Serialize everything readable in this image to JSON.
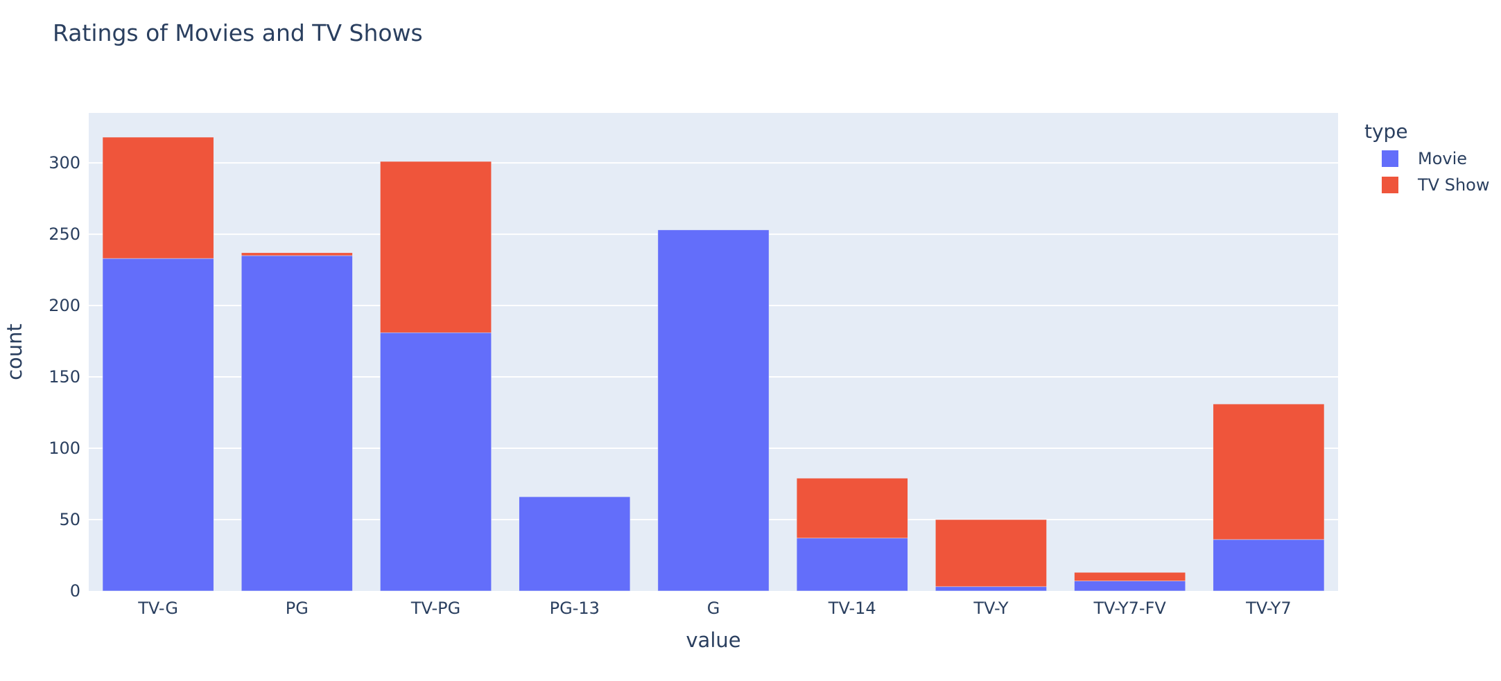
{
  "chart_data": {
    "type": "bar",
    "barmode": "stack",
    "title": "Ratings of Movies and TV Shows",
    "xlabel": "value",
    "ylabel": "count",
    "categories": [
      "TV-G",
      "PG",
      "TV-PG",
      "PG-13",
      "G",
      "TV-14",
      "TV-Y",
      "TV-Y7-FV",
      "TV-Y7"
    ],
    "ylim": [
      0,
      335
    ],
    "yticks": [
      0,
      50,
      100,
      150,
      200,
      250,
      300
    ],
    "grid": true,
    "legend": {
      "title": "type",
      "position": "top-right"
    },
    "series": [
      {
        "name": "Movie",
        "color": "#636efa",
        "values": [
          233,
          235,
          181,
          66,
          253,
          37,
          3,
          7,
          36
        ]
      },
      {
        "name": "TV Show",
        "color": "#ef553b",
        "values": [
          85,
          2,
          120,
          0,
          0,
          42,
          47,
          6,
          95
        ]
      }
    ],
    "plot_bgcolor": "#e5ecf6"
  }
}
